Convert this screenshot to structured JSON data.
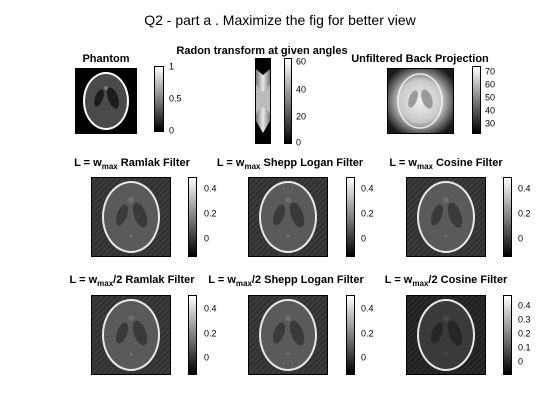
{
  "figure": {
    "suptitle": "Q2 - part a . Maximize the fig for better view"
  },
  "panels": {
    "phantom": {
      "title": "Phantom",
      "cbar_ticks": [
        "1",
        "0.5",
        "0"
      ]
    },
    "radon": {
      "title": "Radon transform at given angles",
      "cbar_ticks": [
        "60",
        "40",
        "20",
        "0"
      ]
    },
    "backproj": {
      "title": "Unfiltered Back Projection",
      "cbar_ticks": [
        "70",
        "60",
        "50",
        "40",
        "30"
      ]
    },
    "ramlak_full": {
      "title_prefix": "L = w",
      "title_sub": "max",
      "title_suffix": " Ramlak Filter",
      "cbar_ticks": [
        "0.4",
        "0.2",
        "0"
      ]
    },
    "shepp_full": {
      "title_prefix": "L = w",
      "title_sub": "max",
      "title_suffix": " Shepp Logan Filter",
      "cbar_ticks": [
        "0.4",
        "0.2",
        "0"
      ]
    },
    "cosine_full": {
      "title_prefix": "L = w",
      "title_sub": "max",
      "title_suffix": " Cosine Filter",
      "cbar_ticks": [
        "0.4",
        "0.2",
        "0"
      ]
    },
    "ramlak_half": {
      "title_prefix": "L = w",
      "title_sub": "max",
      "title_suffix": "/2 Ramlak Filter",
      "cbar_ticks": [
        "0.4",
        "0.2",
        "0"
      ]
    },
    "shepp_half": {
      "title_prefix": "L = w",
      "title_sub": "max",
      "title_suffix": "/2 Shepp Logan Filter",
      "cbar_ticks": [
        "0.4",
        "0.2",
        "0"
      ]
    },
    "cosine_half": {
      "title_prefix": "L = w",
      "title_sub": "max",
      "title_suffix": "/2 Cosine Filter",
      "cbar_ticks": [
        "0.4",
        "0.3",
        "0.2",
        "0.1",
        "0"
      ]
    }
  }
}
